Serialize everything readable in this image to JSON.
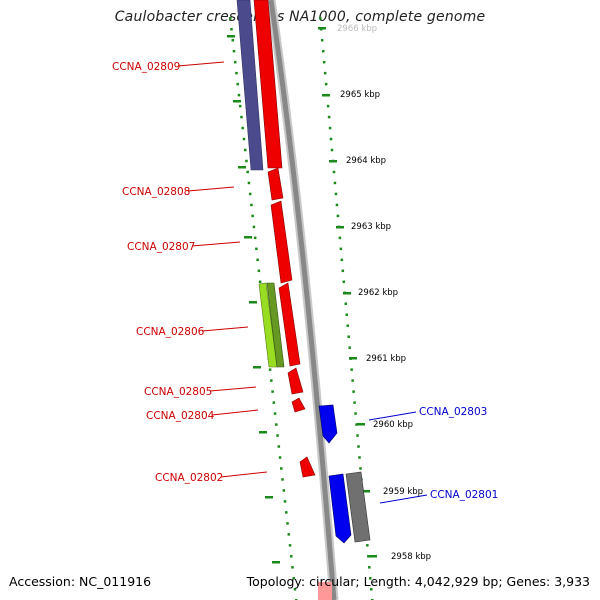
{
  "title": "Caulobacter crescentus NA1000, complete genome",
  "accession_text": "Accession: NC_011916",
  "topology_text": "Topology: circular; Length: 4,042,929 bp; Genes: 3,933",
  "colors": {
    "backbone": "#888888",
    "tick": "#1a8a1a",
    "red_gene": "#ee0000",
    "purple_gene": "#4a4a8c",
    "lime_gene": "#99dd22",
    "blue_gene": "#0000ee",
    "gray_gene": "#707070",
    "red_label": "#cc0000",
    "blue_label": "#0000cc"
  },
  "scale_labels": [
    "2966 kbp",
    "2965 kbp",
    "2964 kbp",
    "2963 kbp",
    "2962 kbp",
    "2961 kbp",
    "2960 kbp",
    "2959 kbp",
    "2958 kbp"
  ],
  "gene_labels": [
    {
      "text": "CCNA_02809",
      "side": "left"
    },
    {
      "text": "CCNA_02808",
      "side": "left"
    },
    {
      "text": "CCNA_02807",
      "side": "left"
    },
    {
      "text": "CCNA_02806",
      "side": "left"
    },
    {
      "text": "CCNA_02805",
      "side": "left"
    },
    {
      "text": "CCNA_02804",
      "side": "left"
    },
    {
      "text": "CCNA_02802",
      "side": "left"
    },
    {
      "text": "CCNA_02803",
      "side": "right"
    },
    {
      "text": "CCNA_02801",
      "side": "right"
    }
  ]
}
